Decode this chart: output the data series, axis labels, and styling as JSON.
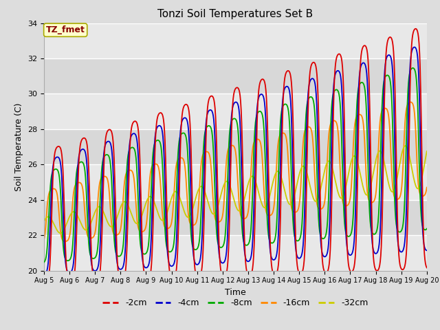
{
  "title": "Tonzi Soil Temperatures Set B",
  "xlabel": "Time",
  "ylabel": "Soil Temperature (C)",
  "ylim": [
    20,
    34
  ],
  "xlim": [
    0,
    360
  ],
  "annotation_text": "TZ_fmet",
  "annotation_bg": "#ffffcc",
  "annotation_border": "#aaaa00",
  "annotation_text_color": "#880000",
  "fig_bg": "#dddddd",
  "plot_bg": "#eeeeee",
  "stripe_colors": [
    "#e8e8e8",
    "#d8d8d8"
  ],
  "colors": {
    "-2cm": "#dd0000",
    "-4cm": "#0000cc",
    "-8cm": "#00aa00",
    "-16cm": "#ff8800",
    "-32cm": "#cccc00"
  },
  "legend_labels": [
    "-2cm",
    "-4cm",
    "-8cm",
    "-16cm",
    "-32cm"
  ],
  "n_days": 15,
  "pts_per_day": 96
}
